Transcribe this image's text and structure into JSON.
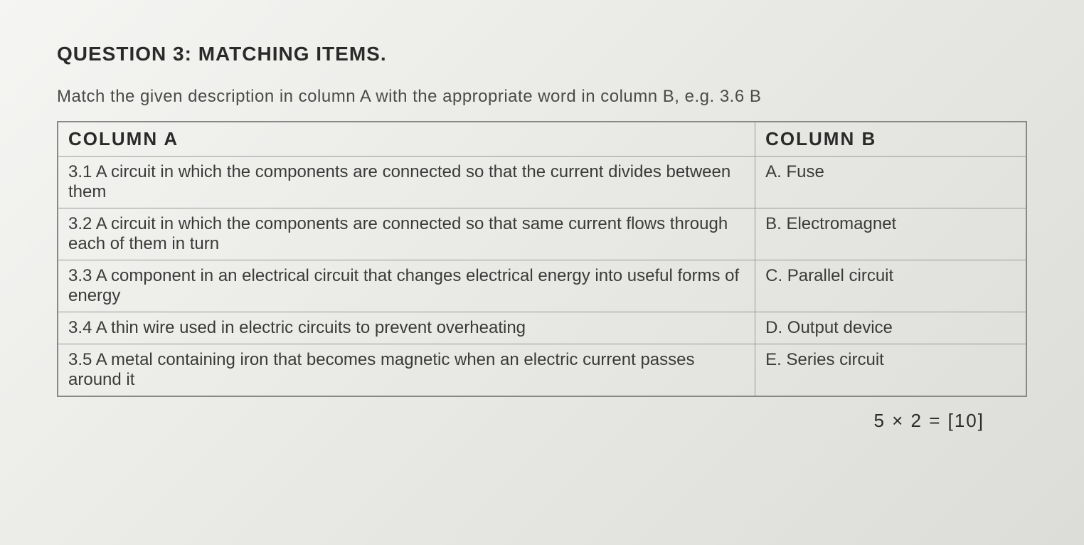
{
  "title": "QUESTION 3: MATCHING ITEMS.",
  "instruction": "Match the given description in column A with the appropriate word in column B, e.g. 3.6 B",
  "table": {
    "header_a": "COLUMN A",
    "header_b": "COLUMN B",
    "rows": [
      {
        "a": "3.1 A circuit in which the components are connected so that the current divides between them",
        "b": "A. Fuse"
      },
      {
        "a": "3.2 A circuit in which the components are connected so that same current flows through each of them in turn",
        "b": "B. Electromagnet"
      },
      {
        "a": "3.3 A component in an electrical circuit that changes electrical energy into useful forms of energy",
        "b": "C. Parallel circuit"
      },
      {
        "a": "3.4 A thin wire used in electric circuits to prevent overheating",
        "b": "D. Output device"
      },
      {
        "a": "3.5 A metal containing iron that becomes magnetic when an electric current passes around it",
        "b": "E. Series circuit"
      }
    ]
  },
  "marks": "5 × 2  =  [10]"
}
